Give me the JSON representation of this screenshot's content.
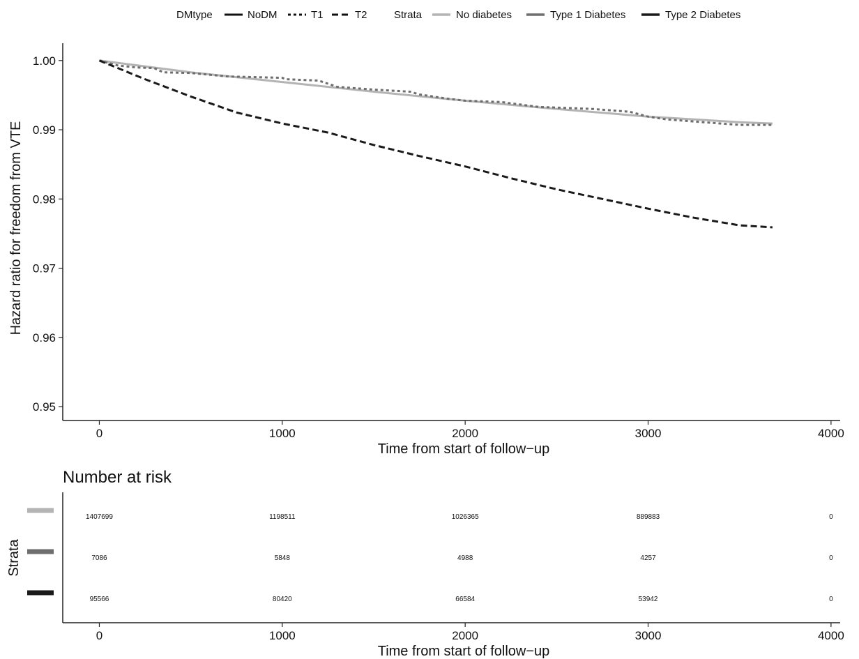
{
  "legend": {
    "linetype_title": "DMtype",
    "linetype_entries": [
      {
        "label": "NoDM",
        "dash": "solid"
      },
      {
        "label": "T1",
        "dash": "dotted"
      },
      {
        "label": "T2",
        "dash": "dashed"
      }
    ],
    "color_title": "Strata",
    "color_entries": [
      {
        "label": "No diabetes",
        "color": "#b4b4b4"
      },
      {
        "label": "Type 1 Diabetes",
        "color": "#6e6e6e"
      },
      {
        "label": "Type 2 Diabetes",
        "color": "#1a1a1a"
      }
    ]
  },
  "chart_data": [
    {
      "type": "line",
      "title": "",
      "xlabel": "Time from start of follow−up",
      "ylabel": "Hazard ratio for freedom from VTE",
      "xlim": [
        -200,
        4050
      ],
      "ylim": [
        0.948,
        1.0025
      ],
      "xticks": [
        0,
        1000,
        2000,
        3000,
        4000
      ],
      "yticks": [
        0.95,
        0.96,
        0.97,
        0.98,
        0.99,
        1.0
      ],
      "ytick_labels": [
        "0.95",
        "0.96",
        "0.97",
        "0.98",
        "0.99",
        "1.00"
      ],
      "grid": false,
      "legend_position": "top",
      "series": [
        {
          "name": "No diabetes",
          "linetype": "solid",
          "color": "#b4b4b4",
          "x": [
            0,
            500,
            1000,
            1500,
            2000,
            2500,
            3000,
            3500,
            3680
          ],
          "y": [
            1.0,
            0.9983,
            0.9969,
            0.9955,
            0.9942,
            0.993,
            0.9919,
            0.9911,
            0.9909
          ]
        },
        {
          "name": "Type 1 Diabetes",
          "linetype": "dotted",
          "color": "#6e6e6e",
          "x": [
            0,
            100,
            200,
            300,
            350,
            500,
            700,
            1000,
            1020,
            1200,
            1300,
            1500,
            1700,
            1750,
            1800,
            1900,
            2000,
            2200,
            2400,
            2700,
            2900,
            3000,
            3100,
            3300,
            3500,
            3680
          ],
          "y": [
            1.0,
            0.9993,
            0.999,
            0.9989,
            0.9983,
            0.9982,
            0.9977,
            0.9975,
            0.9973,
            0.9971,
            0.9962,
            0.9958,
            0.9955,
            0.9951,
            0.9949,
            0.9945,
            0.9942,
            0.994,
            0.9933,
            0.993,
            0.9926,
            0.9919,
            0.9915,
            0.9911,
            0.9907,
            0.9907
          ]
        },
        {
          "name": "Type 2 Diabetes",
          "linetype": "dashed",
          "color": "#1a1a1a",
          "x": [
            0,
            250,
            500,
            750,
            1000,
            1250,
            1500,
            1750,
            2000,
            2250,
            2500,
            2750,
            3000,
            3250,
            3500,
            3680
          ],
          "y": [
            1.0,
            0.9973,
            0.9948,
            0.9925,
            0.9909,
            0.9896,
            0.9878,
            0.9862,
            0.9847,
            0.983,
            0.9814,
            0.98,
            0.9786,
            0.9773,
            0.9762,
            0.9759
          ]
        }
      ]
    },
    {
      "type": "table",
      "title": "Number at risk",
      "xlabel": "Time from start of follow−up",
      "ylabel": "Strata",
      "xlim": [
        -200,
        4050
      ],
      "xticks": [
        0,
        1000,
        2000,
        3000,
        4000
      ],
      "times": [
        0,
        1000,
        2000,
        3000,
        4000
      ],
      "rows": [
        {
          "color": "#b4b4b4",
          "values": [
            "1407699",
            "1198511",
            "1026365",
            "889883",
            "0"
          ]
        },
        {
          "color": "#6e6e6e",
          "values": [
            "7086",
            "5848",
            "4988",
            "4257",
            "0"
          ]
        },
        {
          "color": "#1a1a1a",
          "values": [
            "95566",
            "80420",
            "66584",
            "53942",
            "0"
          ]
        }
      ]
    }
  ]
}
